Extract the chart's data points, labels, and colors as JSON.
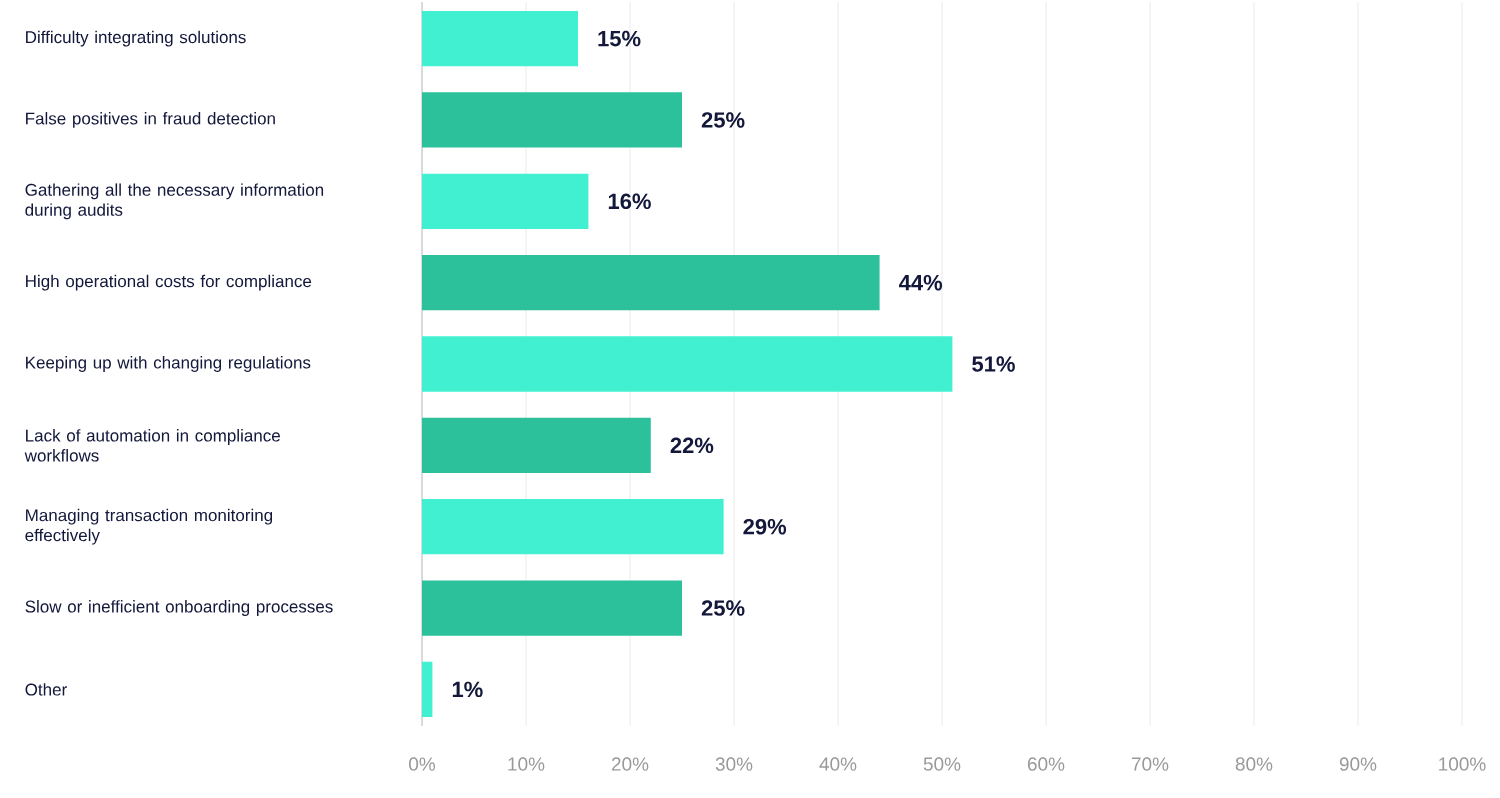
{
  "chart_data": {
    "type": "bar",
    "orientation": "horizontal",
    "categories": [
      "Difficulty integrating solutions",
      "False positives in fraud detection",
      "Gathering all the necessary information during audits",
      "High operational costs for compliance",
      "Keeping up with changing regulations",
      "Lack of automation in compliance workflows",
      "Managing transaction monitoring effectively",
      "Slow or inefficient onboarding processes",
      "Other"
    ],
    "values": [
      15,
      25,
      16,
      44,
      51,
      22,
      29,
      25,
      1
    ],
    "value_labels": [
      "15%",
      "25%",
      "16%",
      "44%",
      "51%",
      "22%",
      "29%",
      "25%",
      "1%"
    ],
    "colors": [
      "#40f0d0",
      "#2cc19b",
      "#40f0d0",
      "#2cc19b",
      "#40f0d0",
      "#2cc19b",
      "#40f0d0",
      "#2cc19b",
      "#40f0d0"
    ],
    "xlim": [
      0,
      100
    ],
    "xticks": [
      {
        "value": 0,
        "label": "0%"
      },
      {
        "value": 10,
        "label": "10%"
      },
      {
        "value": 20,
        "label": "20%"
      },
      {
        "value": 30,
        "label": "30%"
      },
      {
        "value": 40,
        "label": "40%"
      },
      {
        "value": 50,
        "label": "50%"
      },
      {
        "value": 60,
        "label": "60%"
      },
      {
        "value": 70,
        "label": "70%"
      },
      {
        "value": 80,
        "label": "80%"
      },
      {
        "value": 90,
        "label": "90%"
      },
      {
        "value": 100,
        "label": "100%"
      }
    ],
    "grid": "x"
  }
}
